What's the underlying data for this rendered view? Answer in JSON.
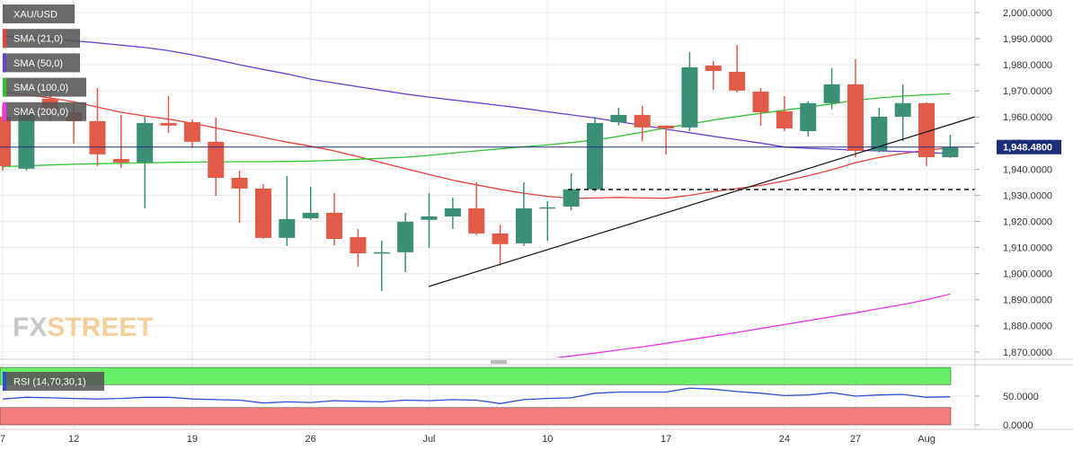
{
  "chart_data": [
    {
      "type": "candlestick",
      "instrument": "XAU/USD",
      "watermark": [
        "FX",
        "STREET"
      ],
      "categories": [
        "7",
        null,
        null,
        "12",
        null,
        null,
        null,
        null,
        "19",
        null,
        null,
        null,
        null,
        "26",
        null,
        null,
        null,
        null,
        "Jul",
        null,
        null,
        null,
        null,
        "10",
        null,
        null,
        null,
        null,
        "17",
        null,
        null,
        null,
        null,
        "24",
        null,
        null,
        "27",
        null,
        null,
        "Aug",
        null
      ],
      "open": [
        1960.1,
        1940.2,
        1967.0,
        1961.8,
        1958.4,
        1943.9,
        1942.6,
        1957.7,
        1958.0,
        1950.5,
        1936.7,
        1932.6,
        1913.7,
        1921.2,
        1923.3,
        1914.0,
        1907.8,
        1908.2,
        1920.6,
        1921.9,
        1925.0,
        1915.4,
        1911.6,
        1925.0,
        1925.7,
        1932.3,
        1958.0,
        1960.8,
        1956.7,
        1956.0,
        1979.7,
        1977.3,
        1969.7,
        1962.2,
        1954.6,
        1965.3,
        1972.5,
        1947.0,
        1960.1,
        1965.3,
        1944.6
      ],
      "high": [
        1964.2,
        1963.5,
        1970.4,
        1965.3,
        1971.1,
        1960.8,
        1960.1,
        1968.0,
        1959.1,
        1959.8,
        1939.5,
        1934.3,
        1937.4,
        1933.3,
        1930.9,
        1917.1,
        1912.6,
        1923.3,
        1930.9,
        1929.2,
        1935.0,
        1918.8,
        1935.0,
        1927.8,
        1938.4,
        1960.1,
        1963.5,
        1964.2,
        1956.7,
        1984.9,
        1981.4,
        1987.6,
        1971.1,
        1968.0,
        1966.0,
        1978.7,
        1982.1,
        1963.5,
        1972.5,
        1965.6,
        1953.2
      ],
      "low": [
        1939.5,
        1939.5,
        1958.4,
        1949.8,
        1941.2,
        1940.5,
        1925.0,
        1953.9,
        1948.1,
        1929.8,
        1919.5,
        1913.3,
        1910.6,
        1920.6,
        1910.9,
        1902.7,
        1893.4,
        1900.6,
        1909.9,
        1917.1,
        1914.7,
        1903.0,
        1910.6,
        1912.6,
        1924.3,
        1931.6,
        1956.7,
        1950.8,
        1945.7,
        1954.6,
        1970.4,
        1969.4,
        1956.7,
        1954.6,
        1952.5,
        1962.9,
        1944.6,
        1946.4,
        1950.8,
        1941.2,
        1944.3
      ],
      "close": [
        1941.2,
        1961.8,
        1962.9,
        1958.4,
        1945.7,
        1942.6,
        1957.7,
        1956.7,
        1950.5,
        1936.7,
        1932.6,
        1913.7,
        1920.9,
        1923.3,
        1913.3,
        1907.8,
        1908.2,
        1919.9,
        1921.9,
        1925.0,
        1915.4,
        1911.3,
        1925.0,
        1925.4,
        1932.3,
        1957.7,
        1960.8,
        1956.0,
        1955.6,
        1979.0,
        1977.6,
        1970.1,
        1961.8,
        1955.6,
        1965.3,
        1972.5,
        1947.0,
        1960.1,
        1965.3,
        1944.6,
        1948.48
      ],
      "up_color": "#3a8f76",
      "down_color": "#e25a48",
      "series": [
        {
          "name": "SMA (21,0)",
          "color": "#e8413a",
          "values": [
            1969.5,
            1968.5,
            1967.3,
            1965.8,
            1963.8,
            1961.8,
            1960.4,
            1959.2,
            1957.6,
            1955.8,
            1954.0,
            1952.2,
            1950.4,
            1948.8,
            1947.0,
            1944.8,
            1942.5,
            1940.2,
            1938.0,
            1935.8,
            1934.0,
            1932.3,
            1930.8,
            1929.6,
            1928.8,
            1929.0,
            1929.2,
            1929.0,
            1928.9,
            1930.0,
            1931.5,
            1932.6,
            1933.8,
            1935.5,
            1937.5,
            1939.8,
            1942.5,
            1944.5,
            1946.0,
            1947.3,
            1948.2
          ]
        },
        {
          "name": "SMA (50,0)",
          "color": "#6a3fd6",
          "values": [
            1991.0,
            1990.6,
            1990.0,
            1989.2,
            1988.4,
            1987.5,
            1986.6,
            1985.4,
            1983.8,
            1982.0,
            1980.0,
            1978.2,
            1976.5,
            1974.5,
            1973.0,
            1971.6,
            1970.2,
            1968.8,
            1967.6,
            1966.5,
            1965.5,
            1964.4,
            1963.3,
            1962.0,
            1960.8,
            1959.6,
            1958.2,
            1956.8,
            1955.3,
            1954.0,
            1952.6,
            1951.3,
            1950.0,
            1948.5,
            1948.0,
            1947.7,
            1947.3,
            1947.0,
            1946.8,
            1946.4,
            1946.0
          ]
        },
        {
          "name": "SMA (100,0)",
          "color": "#33c233",
          "values": [
            1941.0,
            1941.3,
            1941.6,
            1941.9,
            1942.1,
            1942.3,
            1942.4,
            1942.6,
            1942.7,
            1942.8,
            1942.9,
            1942.9,
            1943.0,
            1943.1,
            1943.4,
            1943.8,
            1944.2,
            1944.6,
            1945.3,
            1946.2,
            1947.0,
            1947.8,
            1948.6,
            1949.3,
            1950.2,
            1951.2,
            1952.6,
            1954.2,
            1955.8,
            1957.3,
            1958.8,
            1960.2,
            1961.4,
            1962.6,
            1963.8,
            1965.0,
            1966.4,
            1967.3,
            1968.0,
            1968.5,
            1968.9
          ]
        },
        {
          "name": "SMA (200,0)",
          "color": "#ee33ee",
          "values": [
            null,
            null,
            null,
            null,
            null,
            null,
            null,
            null,
            null,
            null,
            null,
            null,
            null,
            null,
            null,
            null,
            null,
            null,
            null,
            null,
            null,
            null,
            null,
            1867.4,
            1868.5,
            1869.6,
            1870.8,
            1872.0,
            1873.3,
            1874.7,
            1876.1,
            1877.5,
            1879.0,
            1880.5,
            1882.0,
            1883.5,
            1885.0,
            1886.6,
            1888.2,
            1890.0,
            1892.2
          ]
        }
      ],
      "last_price": {
        "value": 1948.48,
        "label": "1,948.4800"
      },
      "last_price_color": "#1c2e78",
      "ylim": [
        1867.9,
        2004.8
      ],
      "yticks": [
        {
          "value": 2000,
          "label": "2,000.0000"
        },
        {
          "value": 1990,
          "label": "1,990.0000"
        },
        {
          "value": 1980,
          "label": "1,980.0000"
        },
        {
          "value": 1970,
          "label": "1,970.0000"
        },
        {
          "value": 1960,
          "label": "1,960.0000"
        },
        {
          "value": 1950,
          "label": "1,950.0000"
        },
        {
          "value": 1940,
          "label": "1,940.0000"
        },
        {
          "value": 1930,
          "label": "1,930.0000"
        },
        {
          "value": 1920,
          "label": "1,920.0000"
        },
        {
          "value": 1910,
          "label": "1,910.0000"
        },
        {
          "value": 1900,
          "label": "1,900.0000"
        },
        {
          "value": 1890,
          "label": "1,890.0000"
        },
        {
          "value": 1880,
          "label": "1,880.0000"
        },
        {
          "value": 1870,
          "label": "1,870.0000"
        }
      ],
      "grid": true
    },
    {
      "type": "line",
      "series": [
        {
          "name": "RSI (14,70,30,1)",
          "color": "#2d4fd6",
          "values": [
            45,
            48,
            47,
            46,
            45,
            46,
            48,
            48,
            45,
            44,
            43,
            38,
            40,
            39,
            42,
            41,
            40,
            43,
            42,
            44,
            43,
            37,
            44,
            46,
            47,
            55,
            57,
            57,
            57,
            64,
            62,
            58,
            55,
            51,
            52,
            56,
            50,
            52,
            53,
            48,
            49
          ]
        }
      ],
      "bands": [
        {
          "from": 70,
          "to": 100,
          "color": "#66ee66"
        },
        {
          "from": 0,
          "to": 30,
          "color": "#f47b7b"
        }
      ],
      "ylim": [
        -7.8,
        101.6
      ],
      "yticks": [
        {
          "value": 50,
          "label": "50.0000"
        },
        {
          "value": 0,
          "label": "0.0000"
        }
      ],
      "grid": true
    }
  ]
}
